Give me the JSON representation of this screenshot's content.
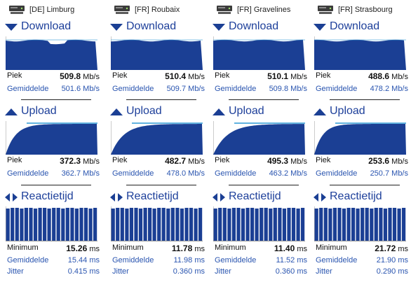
{
  "colors": {
    "fill": "#1b3f94",
    "accent": "#2d9ad6",
    "label": "#1d3f9a",
    "sub": "#2a55b0"
  },
  "icons": {
    "server": "server-icon",
    "download": "download-arrow-icon",
    "upload": "upload-arrow-icon",
    "latency": "latency-arrows-icon"
  },
  "sections": {
    "download": "Download",
    "upload": "Upload",
    "latency": "Reactietijd"
  },
  "labels": {
    "peak": "Piek",
    "avg": "Gemiddelde",
    "min": "Minimum",
    "jitter": "Jitter"
  },
  "units": {
    "speed": "Mb/s",
    "time": "ms"
  },
  "servers": [
    {
      "name": "[DE] Limburg",
      "download": {
        "peak": "509.8",
        "avg": "501.6"
      },
      "upload": {
        "peak": "372.3",
        "avg": "362.7"
      },
      "latency": {
        "min": "15.26",
        "avg": "15.44",
        "jitter": "0.415"
      }
    },
    {
      "name": "[FR] Roubaix",
      "download": {
        "peak": "510.4",
        "avg": "509.7"
      },
      "upload": {
        "peak": "482.7",
        "avg": "478.0"
      },
      "latency": {
        "min": "11.78",
        "avg": "11.98",
        "jitter": "0.360"
      }
    },
    {
      "name": "[FR] Gravelines",
      "download": {
        "peak": "510.1",
        "avg": "509.8"
      },
      "upload": {
        "peak": "495.3",
        "avg": "463.2"
      },
      "latency": {
        "min": "11.40",
        "avg": "11.52",
        "jitter": "0.360"
      }
    },
    {
      "name": "[FR] Strasbourg",
      "download": {
        "peak": "488.6",
        "avg": "478.2"
      },
      "upload": {
        "peak": "253.6",
        "avg": "250.7"
      },
      "latency": {
        "min": "21.72",
        "avg": "21.90",
        "jitter": "0.290"
      }
    }
  ]
}
